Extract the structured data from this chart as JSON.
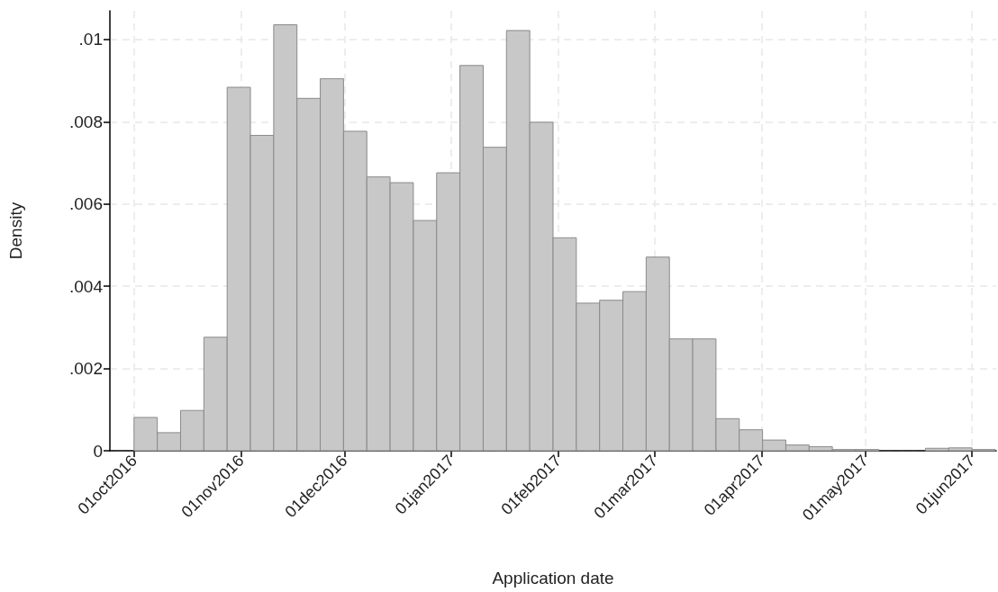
{
  "chart_data": {
    "type": "histogram",
    "xlabel": "Application date",
    "ylabel": "Density",
    "color": "#c8c8c8",
    "bins": [
      "2016-10-01T00:00",
      "2016-10-07T18:00",
      "2016-10-14T12:00",
      "2016-10-21T06:00",
      "2016-10-28T00:00",
      "2016-11-03T18:00",
      "2016-11-10T12:00",
      "2016-11-17T06:00",
      "2016-11-24T00:00",
      "2016-11-30T18:00",
      "2016-12-07T12:00",
      "2016-12-14T06:00",
      "2016-12-21T00:00",
      "2016-12-27T18:00",
      "2017-01-03T12:00",
      "2017-01-10T06:00",
      "2017-01-17T00:00",
      "2017-01-23T18:00",
      "2017-01-30T12:00",
      "2017-02-06T06:00",
      "2017-02-13T00:00",
      "2017-02-19T18:00",
      "2017-02-26T12:00",
      "2017-03-05T06:00",
      "2017-03-12T00:00",
      "2017-03-18T18:00",
      "2017-03-25T12:00",
      "2017-04-01T06:00",
      "2017-04-08T00:00",
      "2017-04-14T18:00",
      "2017-04-21T12:00",
      "2017-04-28T06:00",
      "2017-05-05T00:00",
      "2017-05-11T18:00",
      "2017-05-18T12:00",
      "2017-05-25T06:00",
      "2017-06-01T00:00",
      "2017-06-07T18:00"
    ],
    "values": [
      0.00081,
      0.00044,
      0.00098,
      0.00276,
      0.00884,
      0.00767,
      0.01036,
      0.00857,
      0.00905,
      0.00777,
      0.00666,
      0.00652,
      0.0056,
      0.00676,
      0.00937,
      0.00738,
      0.01022,
      0.00799,
      0.00518,
      0.00359,
      0.00366,
      0.00387,
      0.00471,
      0.00272,
      0.00272,
      0.00078,
      0.00051,
      0.00026,
      0.00014,
      0.0001,
      3e-05,
      3e-05,
      0,
      0,
      6e-05,
      7e-05,
      3e-05
    ],
    "xlim": [
      "2016-09-24",
      "2017-06-08"
    ],
    "xticks": [
      {
        "value": "2016-10-01",
        "label": "01oct2016"
      },
      {
        "value": "2016-11-01",
        "label": "01nov2016"
      },
      {
        "value": "2016-12-01",
        "label": "01dec2016"
      },
      {
        "value": "2017-01-01",
        "label": "01jan2017"
      },
      {
        "value": "2017-02-01",
        "label": "01feb2017"
      },
      {
        "value": "2017-03-01",
        "label": "01mar2017"
      },
      {
        "value": "2017-04-01",
        "label": "01apr2017"
      },
      {
        "value": "2017-05-01",
        "label": "01may2017"
      },
      {
        "value": "2017-06-01",
        "label": "01jun2017"
      }
    ],
    "ylim": [
      0,
      0.0107
    ],
    "yticks": [
      {
        "value": 0,
        "label": "0"
      },
      {
        "value": 0.002,
        "label": ".002"
      },
      {
        "value": 0.004,
        "label": ".004"
      },
      {
        "value": 0.006,
        "label": ".006"
      },
      {
        "value": 0.008,
        "label": ".008"
      },
      {
        "value": 0.01,
        "label": ".01"
      }
    ],
    "grid": true
  }
}
